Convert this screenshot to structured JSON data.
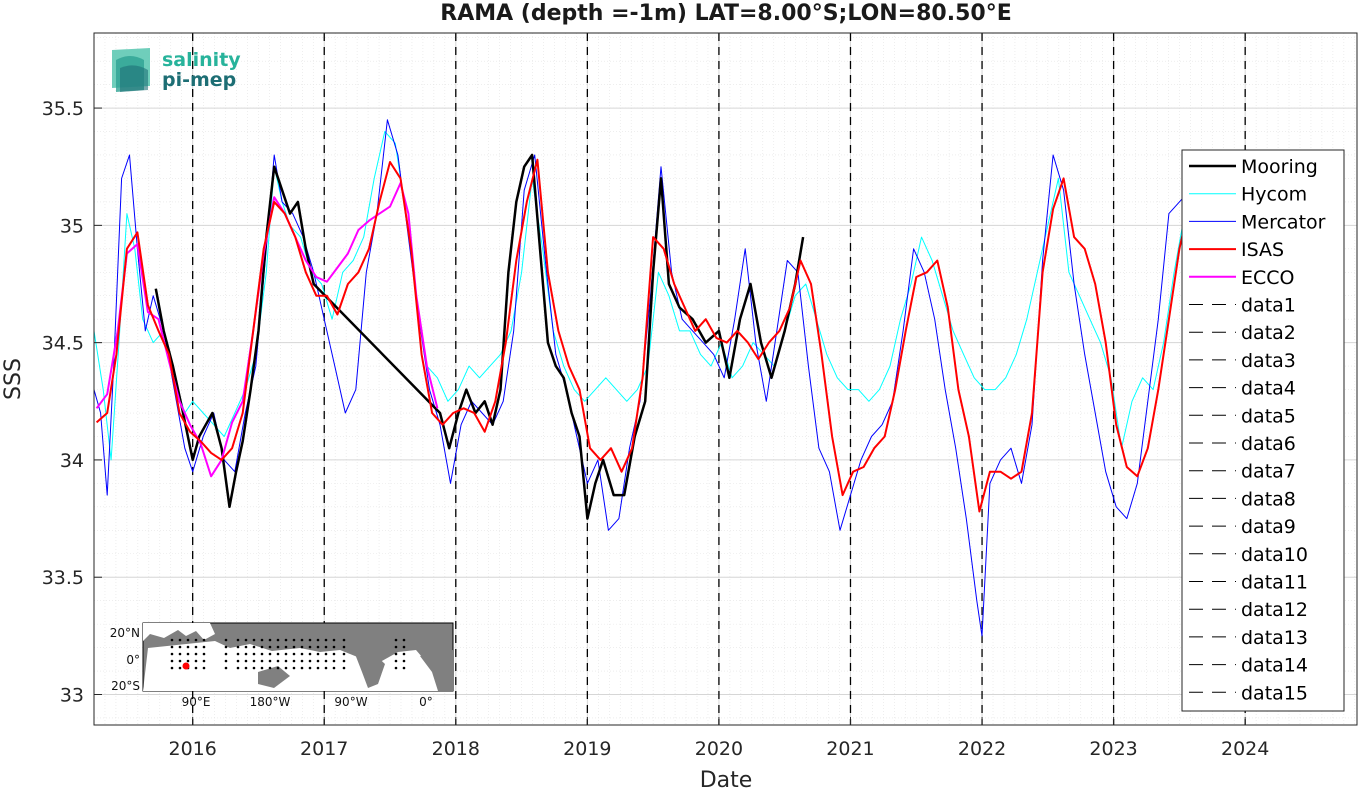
{
  "chart_data": {
    "type": "line",
    "title": "RAMA (depth =-1m) LAT=8.00°S;LON=80.50°E",
    "xlabel": "Date",
    "ylabel": "SSS",
    "xlim": [
      2015.25,
      2024.85
    ],
    "ylim": [
      32.87,
      35.82
    ],
    "x_ticks": [
      2016,
      2017,
      2018,
      2019,
      2020,
      2021,
      2022,
      2023,
      2024
    ],
    "x_tick_labels": [
      "2016",
      "2017",
      "2018",
      "2019",
      "2020",
      "2021",
      "2022",
      "2023",
      "2024"
    ],
    "y_ticks": [
      33,
      33.5,
      34,
      34.5,
      35,
      35.5
    ],
    "y_tick_labels": [
      "33",
      "33.5",
      "34",
      "34.5",
      "35",
      "35.5"
    ],
    "grid": true,
    "legend_position": "right",
    "vlines": [
      2016,
      2017,
      2018,
      2019,
      2020,
      2021,
      2022,
      2023,
      2024
    ],
    "series": [
      {
        "name": "Mooring",
        "color": "#000000",
        "width": 2.5,
        "dash": "none",
        "x": [
          2015.72,
          2015.78,
          2015.85,
          2015.92,
          2016.0,
          2016.05,
          2016.1,
          2016.15,
          2016.22,
          2016.28,
          2016.33,
          2016.38,
          2016.44,
          2016.5,
          2016.56,
          2016.62,
          2016.68,
          2016.74,
          2016.8,
          2016.86,
          2016.92,
          2017.88,
          2017.95,
          2018.02,
          2018.08,
          2018.15,
          2018.22,
          2018.28,
          2018.34,
          2018.4,
          2018.46,
          2018.52,
          2018.58,
          2018.64,
          2018.7,
          2018.76,
          2018.82,
          2018.88,
          2018.94,
          2019.0,
          2019.06,
          2019.12,
          2019.2,
          2019.28,
          2019.36,
          2019.44,
          2019.5,
          2019.56,
          2019.62,
          2019.7,
          2019.8,
          2019.9,
          2020.0,
          2020.08,
          2020.16,
          2020.24,
          2020.32,
          2020.4,
          2020.5,
          2020.58,
          2020.64
        ],
        "y": [
          34.73,
          34.55,
          34.4,
          34.22,
          34.0,
          34.1,
          34.15,
          34.2,
          34.05,
          33.8,
          33.95,
          34.08,
          34.3,
          34.55,
          34.95,
          35.25,
          35.15,
          35.05,
          35.1,
          34.9,
          34.75,
          34.2,
          34.05,
          34.2,
          34.3,
          34.2,
          34.25,
          34.15,
          34.3,
          34.8,
          35.1,
          35.25,
          35.3,
          34.9,
          34.5,
          34.4,
          34.35,
          34.2,
          34.1,
          33.75,
          33.9,
          34.0,
          33.85,
          33.85,
          34.1,
          34.25,
          34.8,
          35.2,
          34.75,
          34.65,
          34.6,
          34.5,
          34.55,
          34.35,
          34.6,
          34.75,
          34.5,
          34.35,
          34.55,
          34.75,
          34.95
        ]
      },
      {
        "name": "Hycom",
        "color": "#00ffff",
        "width": 1,
        "dash": "none",
        "x": [
          2015.25,
          2015.32,
          2015.38,
          2015.44,
          2015.5,
          2015.56,
          2015.62,
          2015.7,
          2015.78,
          2015.86,
          2015.94,
          2016.0,
          2016.08,
          2016.16,
          2016.24,
          2016.32,
          2016.4,
          2016.48,
          2016.56,
          2016.62,
          2016.68,
          2016.74,
          2016.82,
          2016.9,
          2016.98,
          2017.06,
          2017.14,
          2017.22,
          2017.3,
          2017.38,
          2017.46,
          2017.54,
          2017.62,
          2017.7,
          2017.78,
          2017.86,
          2017.94,
          2018.02,
          2018.1,
          2018.18,
          2018.26,
          2018.34,
          2018.42,
          2018.5,
          2018.58,
          2018.66,
          2018.74,
          2018.82,
          2018.9,
          2018.98,
          2019.06,
          2019.14,
          2019.22,
          2019.3,
          2019.38,
          2019.46,
          2019.54,
          2019.62,
          2019.7,
          2019.78,
          2019.86,
          2019.94,
          2020.02,
          2020.1,
          2020.18,
          2020.26,
          2020.34,
          2020.42,
          2020.5,
          2020.58,
          2020.66,
          2020.74,
          2020.82,
          2020.9,
          2020.98,
          2021.06,
          2021.14,
          2021.22,
          2021.3,
          2021.38,
          2021.46,
          2021.54,
          2021.62,
          2021.7,
          2021.78,
          2021.86,
          2021.94,
          2022.02,
          2022.1,
          2022.18,
          2022.26,
          2022.34,
          2022.42,
          2022.5,
          2022.58,
          2022.66,
          2022.74,
          2022.82,
          2022.9,
          2022.98,
          2023.06,
          2023.14,
          2023.22,
          2023.3,
          2023.38,
          2023.46,
          2023.54
        ],
        "y": [
          34.55,
          34.3,
          34.0,
          34.5,
          35.05,
          34.9,
          34.6,
          34.5,
          34.55,
          34.35,
          34.2,
          34.25,
          34.2,
          34.15,
          34.1,
          34.2,
          34.3,
          34.45,
          34.8,
          35.25,
          35.1,
          35.0,
          34.95,
          34.8,
          34.75,
          34.6,
          34.8,
          34.85,
          34.95,
          35.2,
          35.4,
          35.35,
          35.05,
          34.7,
          34.4,
          34.35,
          34.25,
          34.3,
          34.4,
          34.35,
          34.4,
          34.45,
          34.55,
          34.8,
          35.2,
          34.9,
          34.55,
          34.4,
          34.3,
          34.25,
          34.3,
          34.35,
          34.3,
          34.25,
          34.3,
          34.4,
          34.8,
          34.7,
          34.55,
          34.55,
          34.45,
          34.4,
          34.5,
          34.35,
          34.4,
          34.5,
          34.45,
          34.4,
          34.55,
          34.7,
          34.75,
          34.6,
          34.45,
          34.35,
          34.3,
          34.3,
          34.25,
          34.3,
          34.4,
          34.6,
          34.75,
          34.95,
          34.85,
          34.7,
          34.55,
          34.45,
          34.35,
          34.3,
          34.3,
          34.35,
          34.45,
          34.6,
          34.8,
          35.0,
          35.2,
          34.8,
          34.7,
          34.6,
          34.5,
          34.35,
          34.05,
          34.25,
          34.35,
          34.3,
          34.5,
          34.8,
          35.05
        ]
      },
      {
        "name": "Mercator",
        "color": "#0000ff",
        "width": 1,
        "dash": "none",
        "x": [
          2015.25,
          2015.3,
          2015.35,
          2015.4,
          2015.46,
          2015.52,
          2015.58,
          2015.64,
          2015.7,
          2015.78,
          2015.86,
          2015.94,
          2016.0,
          2016.08,
          2016.16,
          2016.24,
          2016.32,
          2016.4,
          2016.48,
          2016.56,
          2016.62,
          2016.68,
          2016.76,
          2016.84,
          2016.92,
          2017.0,
          2017.08,
          2017.16,
          2017.24,
          2017.32,
          2017.4,
          2017.48,
          2017.56,
          2017.64,
          2017.72,
          2017.8,
          2017.88,
          2017.96,
          2018.04,
          2018.12,
          2018.2,
          2018.28,
          2018.36,
          2018.44,
          2018.52,
          2018.6,
          2018.68,
          2018.76,
          2018.84,
          2018.92,
          2019.0,
          2019.08,
          2019.16,
          2019.24,
          2019.32,
          2019.4,
          2019.48,
          2019.56,
          2019.64,
          2019.72,
          2019.8,
          2019.88,
          2019.96,
          2020.04,
          2020.12,
          2020.2,
          2020.28,
          2020.36,
          2020.44,
          2020.52,
          2020.6,
          2020.68,
          2020.76,
          2020.84,
          2020.92,
          2021.0,
          2021.08,
          2021.16,
          2021.24,
          2021.32,
          2021.4,
          2021.48,
          2021.56,
          2021.64,
          2021.72,
          2021.8,
          2021.88,
          2021.96,
          2022.0,
          2022.06,
          2022.14,
          2022.22,
          2022.3,
          2022.38,
          2022.46,
          2022.54,
          2022.62,
          2022.7,
          2022.78,
          2022.86,
          2022.94,
          2023.02,
          2023.1,
          2023.18,
          2023.26,
          2023.34,
          2023.42,
          2023.5,
          2023.58,
          2023.66,
          2023.74,
          2023.8,
          2023.84
        ],
        "y": [
          34.3,
          34.2,
          33.85,
          34.4,
          35.2,
          35.3,
          34.9,
          34.55,
          34.7,
          34.55,
          34.3,
          34.05,
          33.95,
          34.1,
          34.2,
          34.0,
          33.95,
          34.2,
          34.4,
          34.9,
          35.3,
          35.1,
          35.05,
          34.95,
          34.8,
          34.6,
          34.4,
          34.2,
          34.3,
          34.8,
          35.05,
          35.45,
          35.3,
          34.95,
          34.6,
          34.3,
          34.15,
          33.9,
          34.15,
          34.25,
          34.2,
          34.15,
          34.25,
          34.55,
          35.15,
          35.3,
          34.85,
          34.45,
          34.3,
          34.1,
          33.9,
          34.0,
          33.7,
          33.75,
          34.05,
          34.25,
          34.7,
          35.25,
          34.8,
          34.6,
          34.55,
          34.5,
          34.45,
          34.35,
          34.6,
          34.9,
          34.5,
          34.25,
          34.55,
          34.85,
          34.8,
          34.4,
          34.05,
          33.95,
          33.7,
          33.85,
          34.0,
          34.1,
          34.15,
          34.25,
          34.55,
          34.9,
          34.8,
          34.6,
          34.3,
          34.05,
          33.75,
          33.4,
          33.25,
          33.9,
          34.0,
          34.05,
          33.9,
          34.15,
          34.85,
          35.3,
          35.15,
          34.75,
          34.45,
          34.2,
          33.95,
          33.8,
          33.75,
          33.9,
          34.25,
          34.6,
          35.05,
          35.1,
          35.15,
          34.8,
          34.35,
          34.25,
          34.1
        ]
      },
      {
        "name": "ISAS",
        "color": "#ff0000",
        "width": 2,
        "dash": "none",
        "x": [
          2015.27,
          2015.35,
          2015.42,
          2015.5,
          2015.58,
          2015.66,
          2015.74,
          2015.82,
          2015.9,
          2015.98,
          2016.06,
          2016.14,
          2016.22,
          2016.3,
          2016.38,
          2016.46,
          2016.54,
          2016.62,
          2016.7,
          2016.78,
          2016.86,
          2016.94,
          2017.02,
          2017.1,
          2017.18,
          2017.26,
          2017.34,
          2017.42,
          2017.5,
          2017.58,
          2017.66,
          2017.74,
          2017.82,
          2017.9,
          2017.98,
          2018.06,
          2018.14,
          2018.22,
          2018.3,
          2018.38,
          2018.46,
          2018.54,
          2018.62,
          2018.7,
          2018.78,
          2018.86,
          2018.94,
          2019.02,
          2019.1,
          2019.18,
          2019.26,
          2019.34,
          2019.42,
          2019.5,
          2019.58,
          2019.66,
          2019.74,
          2019.82,
          2019.9,
          2019.98,
          2020.06,
          2020.14,
          2020.22,
          2020.3,
          2020.38,
          2020.46,
          2020.54,
          2020.62,
          2020.7,
          2020.78,
          2020.86,
          2020.94,
          2021.02,
          2021.1,
          2021.18,
          2021.26,
          2021.34,
          2021.42,
          2021.5,
          2021.58,
          2021.66,
          2021.74,
          2021.82,
          2021.9,
          2021.98,
          2022.06,
          2022.14,
          2022.22,
          2022.3,
          2022.38,
          2022.46,
          2022.54,
          2022.62,
          2022.7,
          2022.78,
          2022.86,
          2022.94,
          2023.02,
          2023.1,
          2023.18,
          2023.26,
          2023.34,
          2023.42,
          2023.5,
          2023.58
        ],
        "y": [
          34.16,
          34.2,
          34.45,
          34.9,
          34.97,
          34.66,
          34.55,
          34.45,
          34.2,
          34.12,
          34.08,
          34.03,
          34.0,
          34.05,
          34.2,
          34.55,
          34.9,
          35.1,
          35.05,
          34.95,
          34.8,
          34.7,
          34.7,
          34.62,
          34.75,
          34.8,
          34.9,
          35.1,
          35.27,
          35.2,
          34.9,
          34.45,
          34.2,
          34.15,
          34.2,
          34.22,
          34.2,
          34.12,
          34.25,
          34.5,
          34.85,
          35.1,
          35.28,
          34.8,
          34.55,
          34.4,
          34.3,
          34.05,
          34.0,
          34.05,
          33.95,
          34.05,
          34.35,
          34.95,
          34.9,
          34.75,
          34.65,
          34.55,
          34.6,
          34.52,
          34.5,
          34.55,
          34.5,
          34.43,
          34.5,
          34.55,
          34.65,
          34.85,
          34.75,
          34.45,
          34.1,
          33.85,
          33.95,
          33.97,
          34.05,
          34.1,
          34.3,
          34.55,
          34.78,
          34.8,
          34.85,
          34.65,
          34.3,
          34.1,
          33.78,
          33.95,
          33.95,
          33.92,
          33.95,
          34.2,
          34.8,
          35.07,
          35.2,
          34.95,
          34.9,
          34.75,
          34.5,
          34.15,
          33.97,
          33.93,
          34.05,
          34.3,
          34.6,
          34.9,
          35.1
        ]
      },
      {
        "name": "ECCO",
        "color": "#ff00ff",
        "width": 2,
        "dash": "none",
        "x": [
          2015.27,
          2015.35,
          2015.43,
          2015.5,
          2015.58,
          2015.66,
          2015.74,
          2015.82,
          2015.9,
          2015.98,
          2016.06,
          2016.14,
          2016.22,
          2016.3,
          2016.38,
          2016.46,
          2016.54,
          2016.62,
          2016.7,
          2016.78,
          2016.86,
          2016.94,
          2017.02,
          2017.1,
          2017.18,
          2017.26,
          2017.34,
          2017.42,
          2017.5,
          2017.58,
          2017.64,
          2017.7,
          2017.78,
          2017.86
        ],
        "y": [
          34.22,
          34.28,
          34.55,
          34.88,
          34.92,
          34.63,
          34.6,
          34.42,
          34.25,
          34.15,
          34.07,
          33.93,
          34.0,
          34.16,
          34.25,
          34.55,
          34.88,
          35.12,
          35.05,
          34.95,
          34.85,
          34.78,
          34.76,
          34.82,
          34.88,
          34.98,
          35.02,
          35.05,
          35.08,
          35.18,
          35.05,
          34.7,
          34.4,
          34.22
        ]
      },
      {
        "name": "data1",
        "color": "#000000",
        "width": 1,
        "dash": "dashed"
      },
      {
        "name": "data2",
        "color": "#000000",
        "width": 1,
        "dash": "dashed"
      },
      {
        "name": "data3",
        "color": "#000000",
        "width": 1,
        "dash": "dashed"
      },
      {
        "name": "data4",
        "color": "#000000",
        "width": 1,
        "dash": "dashed"
      },
      {
        "name": "data5",
        "color": "#000000",
        "width": 1,
        "dash": "dashed"
      },
      {
        "name": "data6",
        "color": "#000000",
        "width": 1,
        "dash": "dashed"
      },
      {
        "name": "data7",
        "color": "#000000",
        "width": 1,
        "dash": "dashed"
      },
      {
        "name": "data8",
        "color": "#000000",
        "width": 1,
        "dash": "dashed"
      },
      {
        "name": "data9",
        "color": "#000000",
        "width": 1,
        "dash": "dashed"
      },
      {
        "name": "data10",
        "color": "#000000",
        "width": 1,
        "dash": "dashed"
      },
      {
        "name": "data11",
        "color": "#000000",
        "width": 1,
        "dash": "dashed"
      },
      {
        "name": "data12",
        "color": "#000000",
        "width": 1,
        "dash": "dashed"
      },
      {
        "name": "data13",
        "color": "#000000",
        "width": 1,
        "dash": "dashed"
      },
      {
        "name": "data14",
        "color": "#000000",
        "width": 1,
        "dash": "dashed"
      },
      {
        "name": "data15",
        "color": "#000000",
        "width": 1,
        "dash": "dashed"
      }
    ]
  },
  "logo": {
    "line1": "salinity",
    "line2": "pi-mep",
    "color1": "#27b39b",
    "color2": "#1d6e74"
  },
  "inset_map": {
    "lat_labels": [
      "20°N",
      "0°",
      "20°S"
    ],
    "lon_labels": [
      "90°E",
      "180°W",
      "90°W",
      "0°"
    ],
    "station_color": "#ff0000",
    "land_color": "#808080"
  }
}
